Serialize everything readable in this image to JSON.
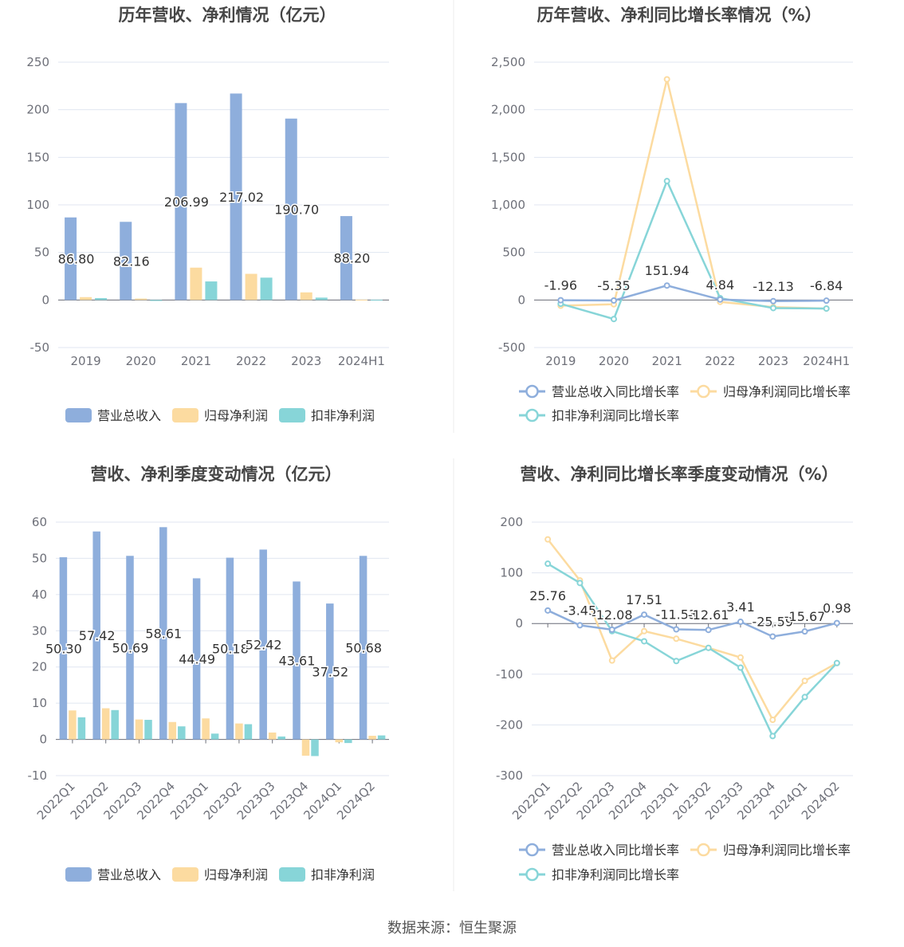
{
  "colors": {
    "revenue": "#8eaedc",
    "net_profit": "#fcdba0",
    "deducted_profit": "#87d5d8",
    "axis_text": "#6e7079",
    "grid": "#e0e6f1",
    "title": "#464646"
  },
  "legend_bar": [
    "营业总收入",
    "归母净利润",
    "扣非净利润"
  ],
  "legend_line": [
    "营业总收入同比增长率",
    "归母净利润同比增长率",
    "扣非净利润同比增长率"
  ],
  "source": "数据来源：恒生聚源",
  "chart_data": [
    {
      "type": "bar",
      "title": "历年营收、净利情况（亿元）",
      "categories": [
        "2019",
        "2020",
        "2021",
        "2022",
        "2023",
        "2024H1"
      ],
      "ylim": [
        -50,
        250
      ],
      "yticks": [
        -50,
        0,
        50,
        100,
        150,
        200,
        250
      ],
      "ytick_labels": [
        "-50",
        "0",
        "50",
        "100",
        "150",
        "200",
        "250"
      ],
      "series": [
        {
          "name": "营业总收入",
          "values": [
            86.8,
            82.16,
            206.99,
            217.02,
            190.7,
            88.2
          ],
          "labels": [
            "86.80",
            "82.16",
            "206.99",
            "217.02",
            "190.70",
            "88.20"
          ]
        },
        {
          "name": "归母净利润",
          "values": [
            3.0,
            1.5,
            34.0,
            27.5,
            8.0,
            0.3
          ]
        },
        {
          "name": "扣非净利润",
          "values": [
            2.0,
            -1.0,
            19.5,
            23.5,
            2.5,
            0.2
          ]
        }
      ],
      "legend": "bottom"
    },
    {
      "type": "line",
      "title": "历年营收、净利同比增长率情况（%）",
      "categories": [
        "2019",
        "2020",
        "2021",
        "2022",
        "2023",
        "2024H1"
      ],
      "ylim": [
        -500,
        2500
      ],
      "yticks": [
        -500,
        0,
        500,
        1000,
        1500,
        2000,
        2500
      ],
      "ytick_labels": [
        "-500",
        "0",
        "500",
        "1,000",
        "1,500",
        "2,000",
        "2,500"
      ],
      "series": [
        {
          "name": "营业总收入同比增长率",
          "values": [
            -1.96,
            -5.35,
            151.94,
            4.84,
            -12.13,
            -6.84
          ],
          "labels": [
            "-1.96",
            "-5.35",
            "151.94",
            "4.84",
            "-12.13",
            "-6.84"
          ]
        },
        {
          "name": "归母净利润同比增长率",
          "values": [
            -60,
            -45,
            2320,
            -20,
            -75,
            -90
          ]
        },
        {
          "name": "扣非净利润同比增长率",
          "values": [
            -40,
            -200,
            1250,
            20,
            -85,
            -90
          ]
        }
      ],
      "legend": "bottom"
    },
    {
      "type": "bar",
      "title": "营收、净利季度变动情况（亿元）",
      "categories": [
        "2022Q1",
        "2022Q2",
        "2022Q3",
        "2022Q4",
        "2023Q1",
        "2023Q2",
        "2023Q3",
        "2023Q4",
        "2024Q1",
        "2024Q2"
      ],
      "ylim": [
        -10,
        60
      ],
      "yticks": [
        -10,
        0,
        10,
        20,
        30,
        40,
        50,
        60
      ],
      "ytick_labels": [
        "-10",
        "0",
        "10",
        "20",
        "30",
        "40",
        "50",
        "60"
      ],
      "series": [
        {
          "name": "营业总收入",
          "values": [
            50.3,
            57.42,
            50.69,
            58.61,
            44.49,
            50.18,
            52.42,
            43.61,
            37.52,
            50.68
          ],
          "labels": [
            "50.30",
            "57.42",
            "50.69",
            "58.61",
            "44.49",
            "50.18",
            "52.42",
            "43.61",
            "37.52",
            "50.68"
          ]
        },
        {
          "name": "归母净利润",
          "values": [
            8.0,
            8.6,
            5.5,
            4.8,
            5.8,
            4.4,
            1.9,
            -4.5,
            -0.8,
            1.0
          ]
        },
        {
          "name": "扣非净利润",
          "values": [
            6.1,
            8.1,
            5.4,
            3.6,
            1.6,
            4.2,
            0.8,
            -4.6,
            -1.0,
            1.1
          ]
        }
      ],
      "legend": "bottom"
    },
    {
      "type": "line",
      "title": "营收、净利同比增长率季度变动情况（%）",
      "categories": [
        "2022Q1",
        "2022Q2",
        "2022Q3",
        "2022Q4",
        "2023Q1",
        "2023Q2",
        "2023Q3",
        "2023Q4",
        "2024Q1",
        "2024Q2"
      ],
      "ylim": [
        -300,
        200
      ],
      "yticks": [
        -300,
        -200,
        -100,
        0,
        100,
        200
      ],
      "ytick_labels": [
        "-300",
        "-200",
        "-100",
        "0",
        "100",
        "200"
      ],
      "series": [
        {
          "name": "营业总收入同比增长率",
          "values": [
            25.76,
            -3.45,
            -12.08,
            17.51,
            -11.53,
            -12.61,
            3.41,
            -25.59,
            -15.67,
            0.98
          ],
          "labels": [
            "25.76",
            "-3.45",
            "-12.08",
            "17.51",
            "-11.53",
            "-12.61",
            "3.41",
            "-25.59",
            "-15.67",
            "0.98"
          ]
        },
        {
          "name": "归母净利润同比增长率",
          "values": [
            166,
            85,
            -73,
            -15,
            -30,
            -48,
            -67,
            -190,
            -113,
            -78
          ]
        },
        {
          "name": "扣非净利润同比增长率",
          "values": [
            118,
            80,
            -15,
            -35,
            -74,
            -48,
            -87,
            -222,
            -145,
            -78
          ]
        }
      ],
      "legend": "bottom"
    }
  ]
}
